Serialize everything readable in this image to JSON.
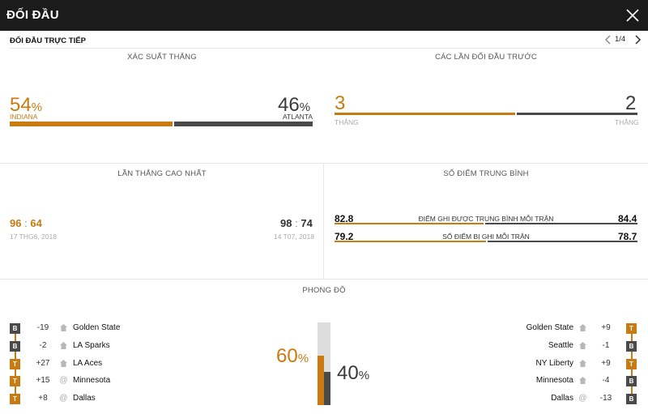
{
  "header": {
    "title": "ĐỐI ĐẦU",
    "close_icon": "close-icon"
  },
  "subheader": {
    "title": "ĐỐI ĐẦU TRỰC TIẾP",
    "pager": "1/4"
  },
  "win_probability": {
    "label": "XÁC SUẤT THẮNG",
    "home": {
      "value": "54",
      "unit": "%",
      "team": "INDIANA"
    },
    "away": {
      "value": "46",
      "unit": "%",
      "team": "ATLANTA"
    },
    "home_fraction": 0.54
  },
  "previous_meetings": {
    "label": "CÁC LẦN ĐỐI ĐẦU TRƯỚC",
    "home": {
      "value": "3",
      "caption": "THẮNG"
    },
    "away": {
      "value": "2",
      "caption": "THẮNG"
    },
    "home_fraction": 0.6
  },
  "biggest_win": {
    "label": "LẦN THẮNG CAO NHẤT",
    "home": {
      "score_a": "96",
      "sep": ":",
      "score_b": "64",
      "date": "17 THG6, 2018"
    },
    "away": {
      "score_a": "98",
      "sep": ":",
      "score_b": "74",
      "date": "14 T07, 2018"
    }
  },
  "average_points": {
    "label": "SỐ ĐIỂM TRUNG BÌNH",
    "rows": [
      {
        "label": "ĐIỂM GHI ĐƯỢC TRUNG BÌNH MỖI TRẬN",
        "home": "82.8",
        "away": "84.4"
      },
      {
        "label": "SỐ ĐIỂM BỊ GHI MỖI TRẬN",
        "home": "79.2",
        "away": "78.7"
      }
    ]
  },
  "form": {
    "label": "PHONG ĐỘ",
    "home_pct": {
      "value": "60",
      "unit": "%"
    },
    "away_pct": {
      "value": "40",
      "unit": "%"
    },
    "home_level": 0.6,
    "away_level": 0.4,
    "home": [
      {
        "result": "B",
        "diff": "-19",
        "venue": "home-icon",
        "team": "Golden State"
      },
      {
        "result": "B",
        "diff": "-2",
        "venue": "home-icon",
        "team": "LA Sparks"
      },
      {
        "result": "T",
        "diff": "+27",
        "venue": "home-icon",
        "team": "LA Aces"
      },
      {
        "result": "T",
        "diff": "+15",
        "venue": "at-icon",
        "team": "Minnesota"
      },
      {
        "result": "T",
        "diff": "+8",
        "venue": "at-icon",
        "team": "Dallas"
      }
    ],
    "away": [
      {
        "result": "T",
        "diff": "+9",
        "venue": "home-icon",
        "team": "Golden State"
      },
      {
        "result": "B",
        "diff": "-1",
        "venue": "home-icon",
        "team": "Seattle"
      },
      {
        "result": "T",
        "diff": "+9",
        "venue": "home-icon",
        "team": "NY Liberty"
      },
      {
        "result": "B",
        "diff": "-4",
        "venue": "home-icon",
        "team": "Minnesota"
      },
      {
        "result": "B",
        "diff": "-13",
        "venue": "at-icon",
        "team": "Dallas"
      }
    ]
  },
  "colors": {
    "accent": "#c97a10",
    "dark": "#4a4a4a",
    "header_bg": "#1b1b1b"
  }
}
